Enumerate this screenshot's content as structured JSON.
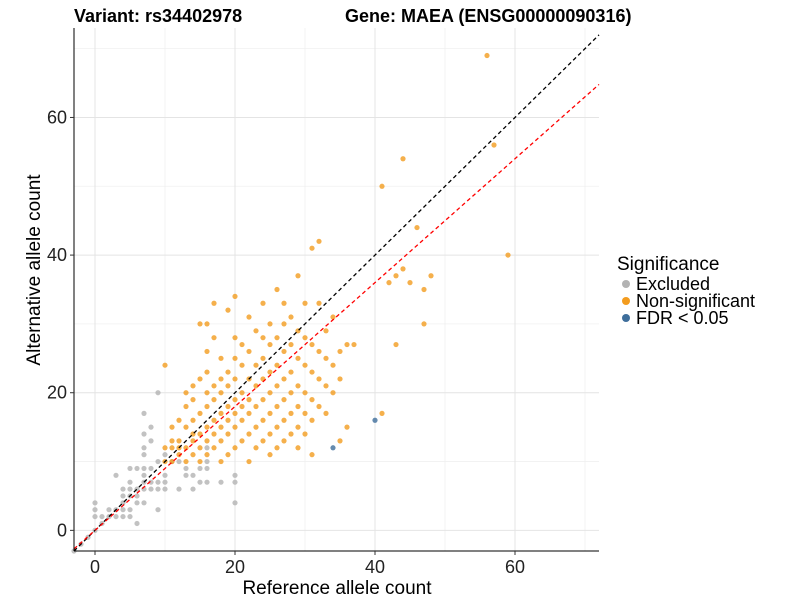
{
  "chart_data": {
    "type": "scatter",
    "title_left": "Variant: rs34402978",
    "title_right": "Gene: MAEA (ENSG00000090316)",
    "xlabel": "Reference allele count",
    "ylabel": "Alternative allele count",
    "xlim": [
      -3,
      72
    ],
    "ylim": [
      -3,
      73
    ],
    "xticks": [
      0,
      20,
      40,
      60
    ],
    "yticks": [
      0,
      20,
      40,
      60
    ],
    "grid": true,
    "legend": {
      "title": "Significance",
      "position": "right",
      "entries": [
        {
          "label": "Excluded",
          "color": "#b3b3b3"
        },
        {
          "label": "Non-significant",
          "color": "#f39c1f"
        },
        {
          "label": "FDR < 0.05",
          "color": "#3e6e9b"
        }
      ]
    },
    "reference_lines": [
      {
        "kind": "identity",
        "slope": 1,
        "intercept": 0,
        "color": "#000000",
        "dash": "dashed"
      },
      {
        "kind": "fit",
        "slope": 0.9,
        "intercept": 0,
        "color": "#ff0000",
        "dash": "dashed"
      }
    ],
    "series": [
      {
        "name": "Excluded",
        "color": "#b3b3b3",
        "points": [
          [
            -3,
            -3
          ],
          [
            -2,
            -2
          ],
          [
            -1,
            -1
          ],
          [
            0,
            0
          ],
          [
            0,
            2
          ],
          [
            0,
            3
          ],
          [
            0,
            4
          ],
          [
            1,
            1
          ],
          [
            1,
            2
          ],
          [
            2,
            2
          ],
          [
            2,
            3
          ],
          [
            3,
            2
          ],
          [
            3,
            3
          ],
          [
            3,
            8
          ],
          [
            4,
            2
          ],
          [
            4,
            3
          ],
          [
            4,
            4
          ],
          [
            4,
            5
          ],
          [
            4,
            6
          ],
          [
            5,
            2
          ],
          [
            5,
            3
          ],
          [
            5,
            5
          ],
          [
            5,
            6
          ],
          [
            5,
            7
          ],
          [
            5,
            9
          ],
          [
            6,
            1
          ],
          [
            6,
            4
          ],
          [
            6,
            5
          ],
          [
            6,
            6
          ],
          [
            6,
            9
          ],
          [
            7,
            4
          ],
          [
            7,
            6
          ],
          [
            7,
            7
          ],
          [
            7,
            8
          ],
          [
            7,
            9
          ],
          [
            7,
            11
          ],
          [
            7,
            12
          ],
          [
            7,
            14
          ],
          [
            7,
            17
          ],
          [
            8,
            6
          ],
          [
            8,
            7
          ],
          [
            8,
            9
          ],
          [
            8,
            13
          ],
          [
            8,
            15
          ],
          [
            9,
            3
          ],
          [
            9,
            6
          ],
          [
            9,
            7
          ],
          [
            9,
            10
          ],
          [
            9,
            20
          ],
          [
            10,
            6
          ],
          [
            10,
            7
          ],
          [
            10,
            8
          ],
          [
            10,
            11
          ],
          [
            11,
            10
          ],
          [
            12,
            6
          ],
          [
            12,
            10
          ],
          [
            13,
            8
          ],
          [
            13,
            9
          ],
          [
            14,
            6
          ],
          [
            14,
            8
          ],
          [
            15,
            7
          ],
          [
            15,
            9
          ],
          [
            16,
            7
          ],
          [
            16,
            9
          ],
          [
            16,
            10
          ],
          [
            16,
            12
          ],
          [
            18,
            7
          ],
          [
            20,
            4
          ],
          [
            20,
            7
          ],
          [
            20,
            8
          ]
        ]
      },
      {
        "name": "Non-significant",
        "color": "#f39c1f",
        "points": [
          [
            10,
            10
          ],
          [
            10,
            12
          ],
          [
            10,
            24
          ],
          [
            11,
            10
          ],
          [
            11,
            12
          ],
          [
            11,
            13
          ],
          [
            11,
            15
          ],
          [
            12,
            11
          ],
          [
            12,
            12
          ],
          [
            12,
            13
          ],
          [
            12,
            16
          ],
          [
            13,
            10
          ],
          [
            13,
            12
          ],
          [
            13,
            15
          ],
          [
            13,
            18
          ],
          [
            13,
            20
          ],
          [
            14,
            11
          ],
          [
            14,
            13
          ],
          [
            14,
            14
          ],
          [
            14,
            16
          ],
          [
            14,
            19
          ],
          [
            14,
            21
          ],
          [
            15,
            10
          ],
          [
            15,
            12
          ],
          [
            15,
            14
          ],
          [
            15,
            17
          ],
          [
            15,
            22
          ],
          [
            15,
            30
          ],
          [
            16,
            11
          ],
          [
            16,
            13
          ],
          [
            16,
            15
          ],
          [
            16,
            18
          ],
          [
            16,
            20
          ],
          [
            16,
            23
          ],
          [
            16,
            26
          ],
          [
            16,
            30
          ],
          [
            17,
            12
          ],
          [
            17,
            14
          ],
          [
            17,
            16
          ],
          [
            17,
            19
          ],
          [
            17,
            21
          ],
          [
            17,
            28
          ],
          [
            17,
            33
          ],
          [
            18,
            10
          ],
          [
            18,
            13
          ],
          [
            18,
            15
          ],
          [
            18,
            17
          ],
          [
            18,
            20
          ],
          [
            18,
            22
          ],
          [
            18,
            25
          ],
          [
            19,
            11
          ],
          [
            19,
            14
          ],
          [
            19,
            16
          ],
          [
            19,
            18
          ],
          [
            19,
            21
          ],
          [
            19,
            23
          ],
          [
            19,
            32
          ],
          [
            20,
            12
          ],
          [
            20,
            15
          ],
          [
            20,
            17
          ],
          [
            20,
            19
          ],
          [
            20,
            22
          ],
          [
            20,
            25
          ],
          [
            20,
            28
          ],
          [
            20,
            34
          ],
          [
            21,
            13
          ],
          [
            21,
            16
          ],
          [
            21,
            18
          ],
          [
            21,
            20
          ],
          [
            21,
            24
          ],
          [
            21,
            27
          ],
          [
            22,
            10
          ],
          [
            22,
            14
          ],
          [
            22,
            17
          ],
          [
            22,
            19
          ],
          [
            22,
            22
          ],
          [
            22,
            26
          ],
          [
            22,
            31
          ],
          [
            23,
            12
          ],
          [
            23,
            15
          ],
          [
            23,
            18
          ],
          [
            23,
            21
          ],
          [
            23,
            24
          ],
          [
            23,
            29
          ],
          [
            24,
            13
          ],
          [
            24,
            16
          ],
          [
            24,
            19
          ],
          [
            24,
            22
          ],
          [
            24,
            25
          ],
          [
            24,
            28
          ],
          [
            24,
            33
          ],
          [
            25,
            11
          ],
          [
            25,
            14
          ],
          [
            25,
            17
          ],
          [
            25,
            20
          ],
          [
            25,
            23
          ],
          [
            25,
            27
          ],
          [
            25,
            30
          ],
          [
            26,
            12
          ],
          [
            26,
            15
          ],
          [
            26,
            18
          ],
          [
            26,
            21
          ],
          [
            26,
            24
          ],
          [
            26,
            28
          ],
          [
            26,
            35
          ],
          [
            27,
            13
          ],
          [
            27,
            16
          ],
          [
            27,
            19
          ],
          [
            27,
            22
          ],
          [
            27,
            26
          ],
          [
            27,
            30
          ],
          [
            27,
            33
          ],
          [
            28,
            14
          ],
          [
            28,
            17
          ],
          [
            28,
            20
          ],
          [
            28,
            23
          ],
          [
            28,
            27
          ],
          [
            28,
            31
          ],
          [
            29,
            12
          ],
          [
            29,
            15
          ],
          [
            29,
            18
          ],
          [
            29,
            21
          ],
          [
            29,
            25
          ],
          [
            29,
            29
          ],
          [
            29,
            37
          ],
          [
            30,
            14
          ],
          [
            30,
            17
          ],
          [
            30,
            20
          ],
          [
            30,
            24
          ],
          [
            30,
            28
          ],
          [
            30,
            33
          ],
          [
            31,
            11
          ],
          [
            31,
            16
          ],
          [
            31,
            19
          ],
          [
            31,
            23
          ],
          [
            31,
            27
          ],
          [
            31,
            41
          ],
          [
            32,
            18
          ],
          [
            32,
            22
          ],
          [
            32,
            26
          ],
          [
            32,
            33
          ],
          [
            32,
            42
          ],
          [
            33,
            17
          ],
          [
            33,
            21
          ],
          [
            33,
            25
          ],
          [
            33,
            29
          ],
          [
            34,
            20
          ],
          [
            34,
            24
          ],
          [
            34,
            31
          ],
          [
            35,
            13
          ],
          [
            35,
            22
          ],
          [
            35,
            26
          ],
          [
            36,
            15
          ],
          [
            36,
            27
          ],
          [
            37,
            27
          ],
          [
            41,
            17
          ],
          [
            41,
            50
          ],
          [
            42,
            36
          ],
          [
            43,
            27
          ],
          [
            43,
            37
          ],
          [
            44,
            38
          ],
          [
            44,
            54
          ],
          [
            45,
            36
          ],
          [
            46,
            44
          ],
          [
            47,
            30
          ],
          [
            47,
            35
          ],
          [
            48,
            37
          ],
          [
            56,
            69
          ],
          [
            57,
            56
          ],
          [
            59,
            40
          ]
        ]
      },
      {
        "name": "FDR < 0.05",
        "color": "#3e6e9b",
        "points": [
          [
            34,
            12
          ],
          [
            40,
            16
          ]
        ]
      }
    ]
  }
}
